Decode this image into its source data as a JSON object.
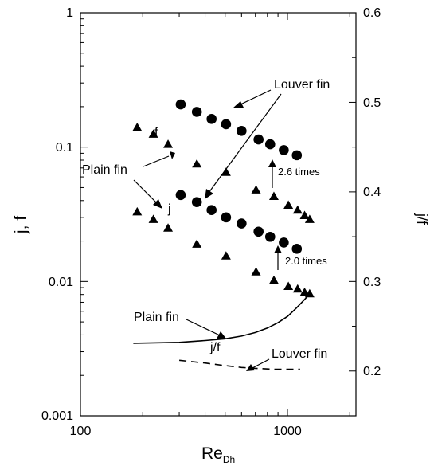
{
  "chart_data": {
    "type": "scatter",
    "xlabel": "Re",
    "xlabel_sub": "Dh",
    "ylabel": "j, f",
    "y2label": "j/f",
    "x_scale": "log",
    "y_scale": "log",
    "xlim": [
      100,
      2000
    ],
    "ylim": [
      0.001,
      1
    ],
    "y2lim": [
      0.15,
      0.6
    ],
    "x_ticks": [
      {
        "v": 100,
        "label": "100"
      },
      {
        "v": 1000,
        "label": "1000"
      }
    ],
    "y_ticks": [
      {
        "v": 0.001,
        "label": "0.001"
      },
      {
        "v": 0.01,
        "label": "0.01"
      },
      {
        "v": 0.1,
        "label": "0.1"
      },
      {
        "v": 1,
        "label": "1"
      }
    ],
    "y2_ticks": [
      {
        "v": 0.2,
        "label": "0.2"
      },
      {
        "v": 0.3,
        "label": "0.3"
      },
      {
        "v": 0.4,
        "label": "0.4"
      },
      {
        "v": 0.5,
        "label": "0.5"
      },
      {
        "v": 0.6,
        "label": "0.6"
      }
    ],
    "grid": false,
    "series": [
      {
        "name": "Louver fin",
        "label": "f",
        "marker": "circle",
        "axis": "left",
        "points": [
          [
            305,
            0.208
          ],
          [
            365,
            0.183
          ],
          [
            430,
            0.162
          ],
          [
            505,
            0.148
          ],
          [
            600,
            0.132
          ],
          [
            725,
            0.114
          ],
          [
            825,
            0.105
          ],
          [
            960,
            0.095
          ],
          [
            1110,
            0.087
          ]
        ]
      },
      {
        "name": "Louver fin",
        "label": "j",
        "marker": "circle",
        "axis": "left",
        "points": [
          [
            305,
            0.044
          ],
          [
            365,
            0.039
          ],
          [
            430,
            0.034
          ],
          [
            505,
            0.03
          ],
          [
            600,
            0.027
          ],
          [
            725,
            0.0235
          ],
          [
            825,
            0.0215
          ],
          [
            960,
            0.0195
          ],
          [
            1110,
            0.0175
          ]
        ]
      },
      {
        "name": "Plain fin",
        "label": "f",
        "marker": "triangle",
        "axis": "left",
        "points": [
          [
            188,
            0.14
          ],
          [
            225,
            0.125
          ],
          [
            265,
            0.105
          ],
          [
            365,
            0.075
          ],
          [
            505,
            0.065
          ],
          [
            705,
            0.048
          ],
          [
            860,
            0.043
          ],
          [
            1010,
            0.037
          ],
          [
            1120,
            0.034
          ],
          [
            1210,
            0.031
          ],
          [
            1280,
            0.029
          ]
        ]
      },
      {
        "name": "Plain fin",
        "label": "j",
        "marker": "triangle",
        "axis": "left",
        "points": [
          [
            188,
            0.033
          ],
          [
            225,
            0.029
          ],
          [
            265,
            0.025
          ],
          [
            365,
            0.019
          ],
          [
            505,
            0.0155
          ],
          [
            705,
            0.0118
          ],
          [
            860,
            0.0102
          ],
          [
            1010,
            0.0092
          ],
          [
            1120,
            0.0088
          ],
          [
            1210,
            0.0083
          ],
          [
            1280,
            0.0081
          ]
        ]
      },
      {
        "name": "Plain fin",
        "label": "j/f",
        "style": "solid",
        "axis": "right",
        "points": [
          [
            180,
            0.231
          ],
          [
            300,
            0.232
          ],
          [
            400,
            0.234
          ],
          [
            500,
            0.236
          ],
          [
            600,
            0.239
          ],
          [
            700,
            0.243
          ],
          [
            800,
            0.248
          ],
          [
            900,
            0.254
          ],
          [
            1000,
            0.261
          ],
          [
            1100,
            0.27
          ],
          [
            1200,
            0.279
          ],
          [
            1290,
            0.287
          ]
        ]
      },
      {
        "name": "Louver fin",
        "label": "j/f",
        "style": "dashed",
        "axis": "right",
        "points": [
          [
            300,
            0.212
          ],
          [
            400,
            0.209
          ],
          [
            500,
            0.206
          ],
          [
            600,
            0.204
          ],
          [
            700,
            0.203
          ],
          [
            850,
            0.202
          ],
          [
            1000,
            0.202
          ],
          [
            1150,
            0.202
          ]
        ]
      }
    ],
    "annotations": [
      {
        "text": "f",
        "size": 16
      },
      {
        "text": "j",
        "size": 16
      },
      {
        "text": "Louver fin",
        "size": 16
      },
      {
        "text": "Plain fin",
        "size": 16
      },
      {
        "text": "2.6 times",
        "size": 13
      },
      {
        "text": "2.0 times",
        "size": 13
      },
      {
        "text": "Plain fin",
        "size": 16
      },
      {
        "text": "j/f",
        "size": 16
      },
      {
        "text": "Louver fin",
        "size": 16
      }
    ]
  }
}
